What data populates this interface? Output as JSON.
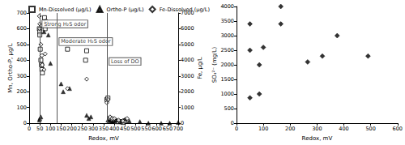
{
  "chart_data": [
    {
      "type": "scatter",
      "x_label": "Redox, mV",
      "y_label": "Mn, Ortho-P, µg/L",
      "y2_label": "Fe, µg/L",
      "xlim": [
        0,
        700
      ],
      "xticks": [
        0,
        50,
        100,
        150,
        200,
        250,
        300,
        350,
        400,
        450,
        500,
        550,
        600,
        650,
        700
      ],
      "ylim": [
        0,
        700
      ],
      "yticks": [
        0,
        100,
        200,
        300,
        400,
        500,
        600,
        700
      ],
      "y2lim": [
        0,
        7000
      ],
      "y2ticks": [
        0,
        1000,
        2000,
        3000,
        4000,
        5000,
        6000,
        7000
      ],
      "grid": false,
      "legend": "top",
      "series": [
        {
          "name": "Mn-Dissolved (µg/L)",
          "color": "#000000",
          "marker": "open square",
          "x": [
            48,
            50,
            50,
            52,
            55,
            58,
            60,
            62,
            72,
            75,
            180,
            265,
            270,
            365,
            370,
            380,
            390,
            400,
            410,
            420,
            430,
            440,
            450
          ],
          "values": [
            600,
            580,
            560,
            470,
            400,
            370,
            340,
            320,
            670,
            600,
            470,
            400,
            460,
            150,
            160,
            30,
            20,
            15,
            10,
            10,
            10,
            5,
            15
          ]
        },
        {
          "name": "Ortho-P (µg/L)",
          "color": "#000000",
          "marker": "triangle",
          "x": [
            48,
            50,
            55,
            70,
            90,
            100,
            150,
            160,
            190,
            270,
            280,
            290,
            370,
            380,
            390,
            400,
            410,
            430,
            450,
            470,
            520,
            560,
            620,
            660,
            700
          ],
          "values": [
            20,
            30,
            40,
            580,
            560,
            380,
            250,
            200,
            220,
            50,
            30,
            40,
            20,
            15,
            10,
            15,
            20,
            10,
            25,
            15,
            10,
            0,
            0,
            0,
            5
          ]
        },
        {
          "name": "Fe-Dissolved (µg/L)",
          "color": "#000000",
          "marker": "open diamond",
          "axis": "y2",
          "x": [
            48,
            50,
            50,
            55,
            60,
            62,
            70,
            75,
            80,
            180,
            270,
            365,
            370,
            380,
            390,
            400,
            420,
            440,
            460
          ],
          "values": [
            6800,
            6300,
            6000,
            5000,
            4300,
            3700,
            3400,
            4400,
            6500,
            2200,
            2800,
            1300,
            1500,
            400,
            300,
            300,
            200,
            150,
            300
          ]
        }
      ],
      "annotations": [
        {
          "text": "Strong H₂S odor",
          "x": 50
        },
        {
          "text": "Moderate H₂S odor",
          "x": 130
        },
        {
          "text": "Loss of DO",
          "x": 365
        }
      ]
    },
    {
      "type": "scatter",
      "x_label": "Redox, mV",
      "y_label": "SO₄²⁻ (mg/L)",
      "xlim": [
        0,
        600
      ],
      "xticks": [
        0,
        100,
        200,
        300,
        400,
        500,
        600
      ],
      "ylim": [
        0,
        4000
      ],
      "yticks": [
        0,
        500,
        1000,
        1500,
        2000,
        2500,
        3000,
        3500,
        4000
      ],
      "grid": false,
      "color": "#000000",
      "marker": "diamond",
      "x": [
        50,
        50,
        50,
        85,
        85,
        100,
        165,
        165,
        265,
        320,
        375,
        490
      ],
      "values": [
        2500,
        3400,
        870,
        2000,
        1000,
        2600,
        4000,
        3400,
        2100,
        2300,
        3000,
        2300
      ]
    }
  ]
}
